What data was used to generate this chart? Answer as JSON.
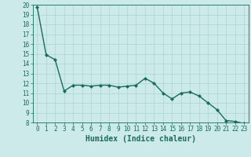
{
  "x": [
    0,
    1,
    2,
    3,
    4,
    5,
    6,
    7,
    8,
    9,
    10,
    11,
    12,
    13,
    14,
    15,
    16,
    17,
    18,
    19,
    20,
    21,
    22,
    23
  ],
  "y": [
    19.8,
    14.9,
    14.4,
    11.2,
    11.8,
    11.8,
    11.7,
    11.8,
    11.8,
    11.6,
    11.7,
    11.8,
    12.5,
    12.0,
    11.0,
    10.4,
    11.0,
    11.1,
    10.7,
    10.0,
    9.3,
    8.2,
    8.1,
    7.9
  ],
  "line_color": "#1a6b5a",
  "marker": "D",
  "marker_size": 2,
  "bg_color": "#cceaea",
  "grid_color": "#aad4d4",
  "xlabel": "Humidex (Indice chaleur)",
  "ylim": [
    8,
    20
  ],
  "xlim": [
    -0.5,
    23.5
  ],
  "yticks": [
    8,
    9,
    10,
    11,
    12,
    13,
    14,
    15,
    16,
    17,
    18,
    19,
    20
  ],
  "xticks": [
    0,
    1,
    2,
    3,
    4,
    5,
    6,
    7,
    8,
    9,
    10,
    11,
    12,
    13,
    14,
    15,
    16,
    17,
    18,
    19,
    20,
    21,
    22,
    23
  ],
  "tick_fontsize": 5.5,
  "label_fontsize": 7,
  "linewidth": 1.0
}
